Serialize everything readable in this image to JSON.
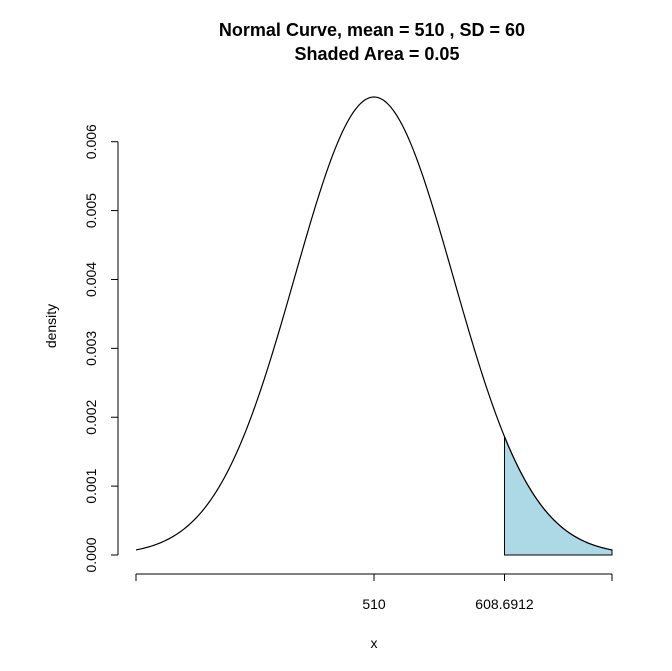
{
  "chart_data": {
    "type": "area",
    "title": "Normal Curve, mean =  510 , SD =  60",
    "subtitle": "Shaded Area =  0.05",
    "xlabel": "x",
    "ylabel": "density",
    "distribution": "normal",
    "mean": 510,
    "sd": 60,
    "shaded_area": 0.05,
    "shade_from": 608.6912,
    "xlim": [
      330,
      690
    ],
    "ylim": [
      0,
      0.006649
    ],
    "x_ticks": [
      {
        "value": 510,
        "label": "510"
      },
      {
        "value": 608.6912,
        "label": "608.6912"
      }
    ],
    "y_ticks": [
      {
        "value": 0.0,
        "label": "0.000"
      },
      {
        "value": 0.001,
        "label": "0.001"
      },
      {
        "value": 0.002,
        "label": "0.002"
      },
      {
        "value": 0.003,
        "label": "0.003"
      },
      {
        "value": 0.004,
        "label": "0.004"
      },
      {
        "value": 0.005,
        "label": "0.005"
      },
      {
        "value": 0.006,
        "label": "0.006"
      }
    ],
    "shade_color": "#add8e6",
    "line_color": "#000000",
    "grid": false
  }
}
